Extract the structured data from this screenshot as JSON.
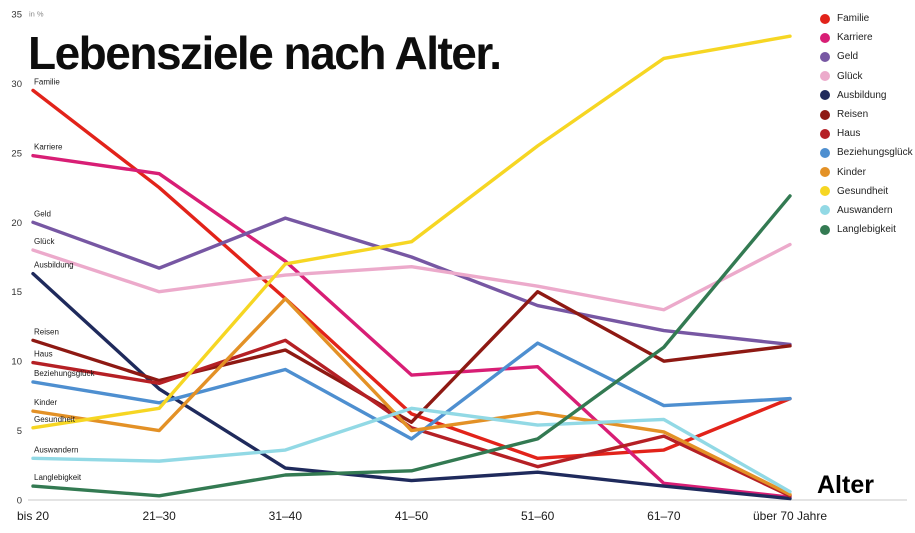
{
  "chart_data": {
    "type": "line",
    "title": "Lebensziele nach Alter.",
    "ylabel": "in %",
    "xlabel": "Alter",
    "ylim": [
      0,
      35
    ],
    "yticks": [
      0,
      5,
      10,
      15,
      20,
      25,
      30,
      35
    ],
    "grid": false,
    "legend_position": "top-right",
    "series_start_labels": true,
    "categories": [
      "bis 20",
      "21–30",
      "31–40",
      "41–50",
      "51–60",
      "61–70",
      "über 70 Jahre"
    ],
    "series": [
      {
        "name": "Familie",
        "color": "#e2231a",
        "values": [
          29.5,
          22.5,
          14.5,
          6.2,
          3.0,
          3.6,
          7.3
        ]
      },
      {
        "name": "Karriere",
        "color": "#d81e75",
        "values": [
          24.8,
          23.5,
          17.2,
          9.0,
          9.6,
          1.2,
          0.2
        ]
      },
      {
        "name": "Geld",
        "color": "#7757a3",
        "values": [
          20.0,
          16.7,
          20.3,
          17.5,
          14.0,
          12.2,
          11.2
        ]
      },
      {
        "name": "Glück",
        "color": "#ecaacb",
        "values": [
          18.0,
          15.0,
          16.2,
          16.8,
          15.4,
          13.7,
          18.4
        ]
      },
      {
        "name": "Ausbildung",
        "color": "#1f2a5c",
        "values": [
          16.3,
          8.0,
          2.3,
          1.4,
          2.0,
          1.0,
          0.1
        ]
      },
      {
        "name": "Reisen",
        "color": "#8e1913",
        "values": [
          11.5,
          8.6,
          10.8,
          5.6,
          15.0,
          10.0,
          11.1
        ]
      },
      {
        "name": "Haus",
        "color": "#b52025",
        "values": [
          9.9,
          8.4,
          11.5,
          5.2,
          2.4,
          4.6,
          0.3
        ]
      },
      {
        "name": "Beziehungsglück",
        "color": "#4e8fd0",
        "values": [
          8.5,
          7.0,
          9.4,
          4.4,
          11.3,
          6.8,
          7.3
        ]
      },
      {
        "name": "Kinder",
        "color": "#e39126",
        "values": [
          6.4,
          5.0,
          14.5,
          5.0,
          6.3,
          4.9,
          0.4
        ]
      },
      {
        "name": "Gesundheit",
        "color": "#f6d623",
        "values": [
          5.2,
          6.6,
          17.0,
          18.6,
          25.5,
          31.8,
          33.4
        ]
      },
      {
        "name": "Auswandern",
        "color": "#92d9e5",
        "values": [
          3.0,
          2.8,
          3.6,
          6.6,
          5.4,
          5.8,
          0.6
        ]
      },
      {
        "name": "Langlebigkeit",
        "color": "#337a52",
        "values": [
          1.0,
          0.3,
          1.8,
          2.1,
          4.4,
          11.0,
          21.9
        ]
      }
    ]
  }
}
